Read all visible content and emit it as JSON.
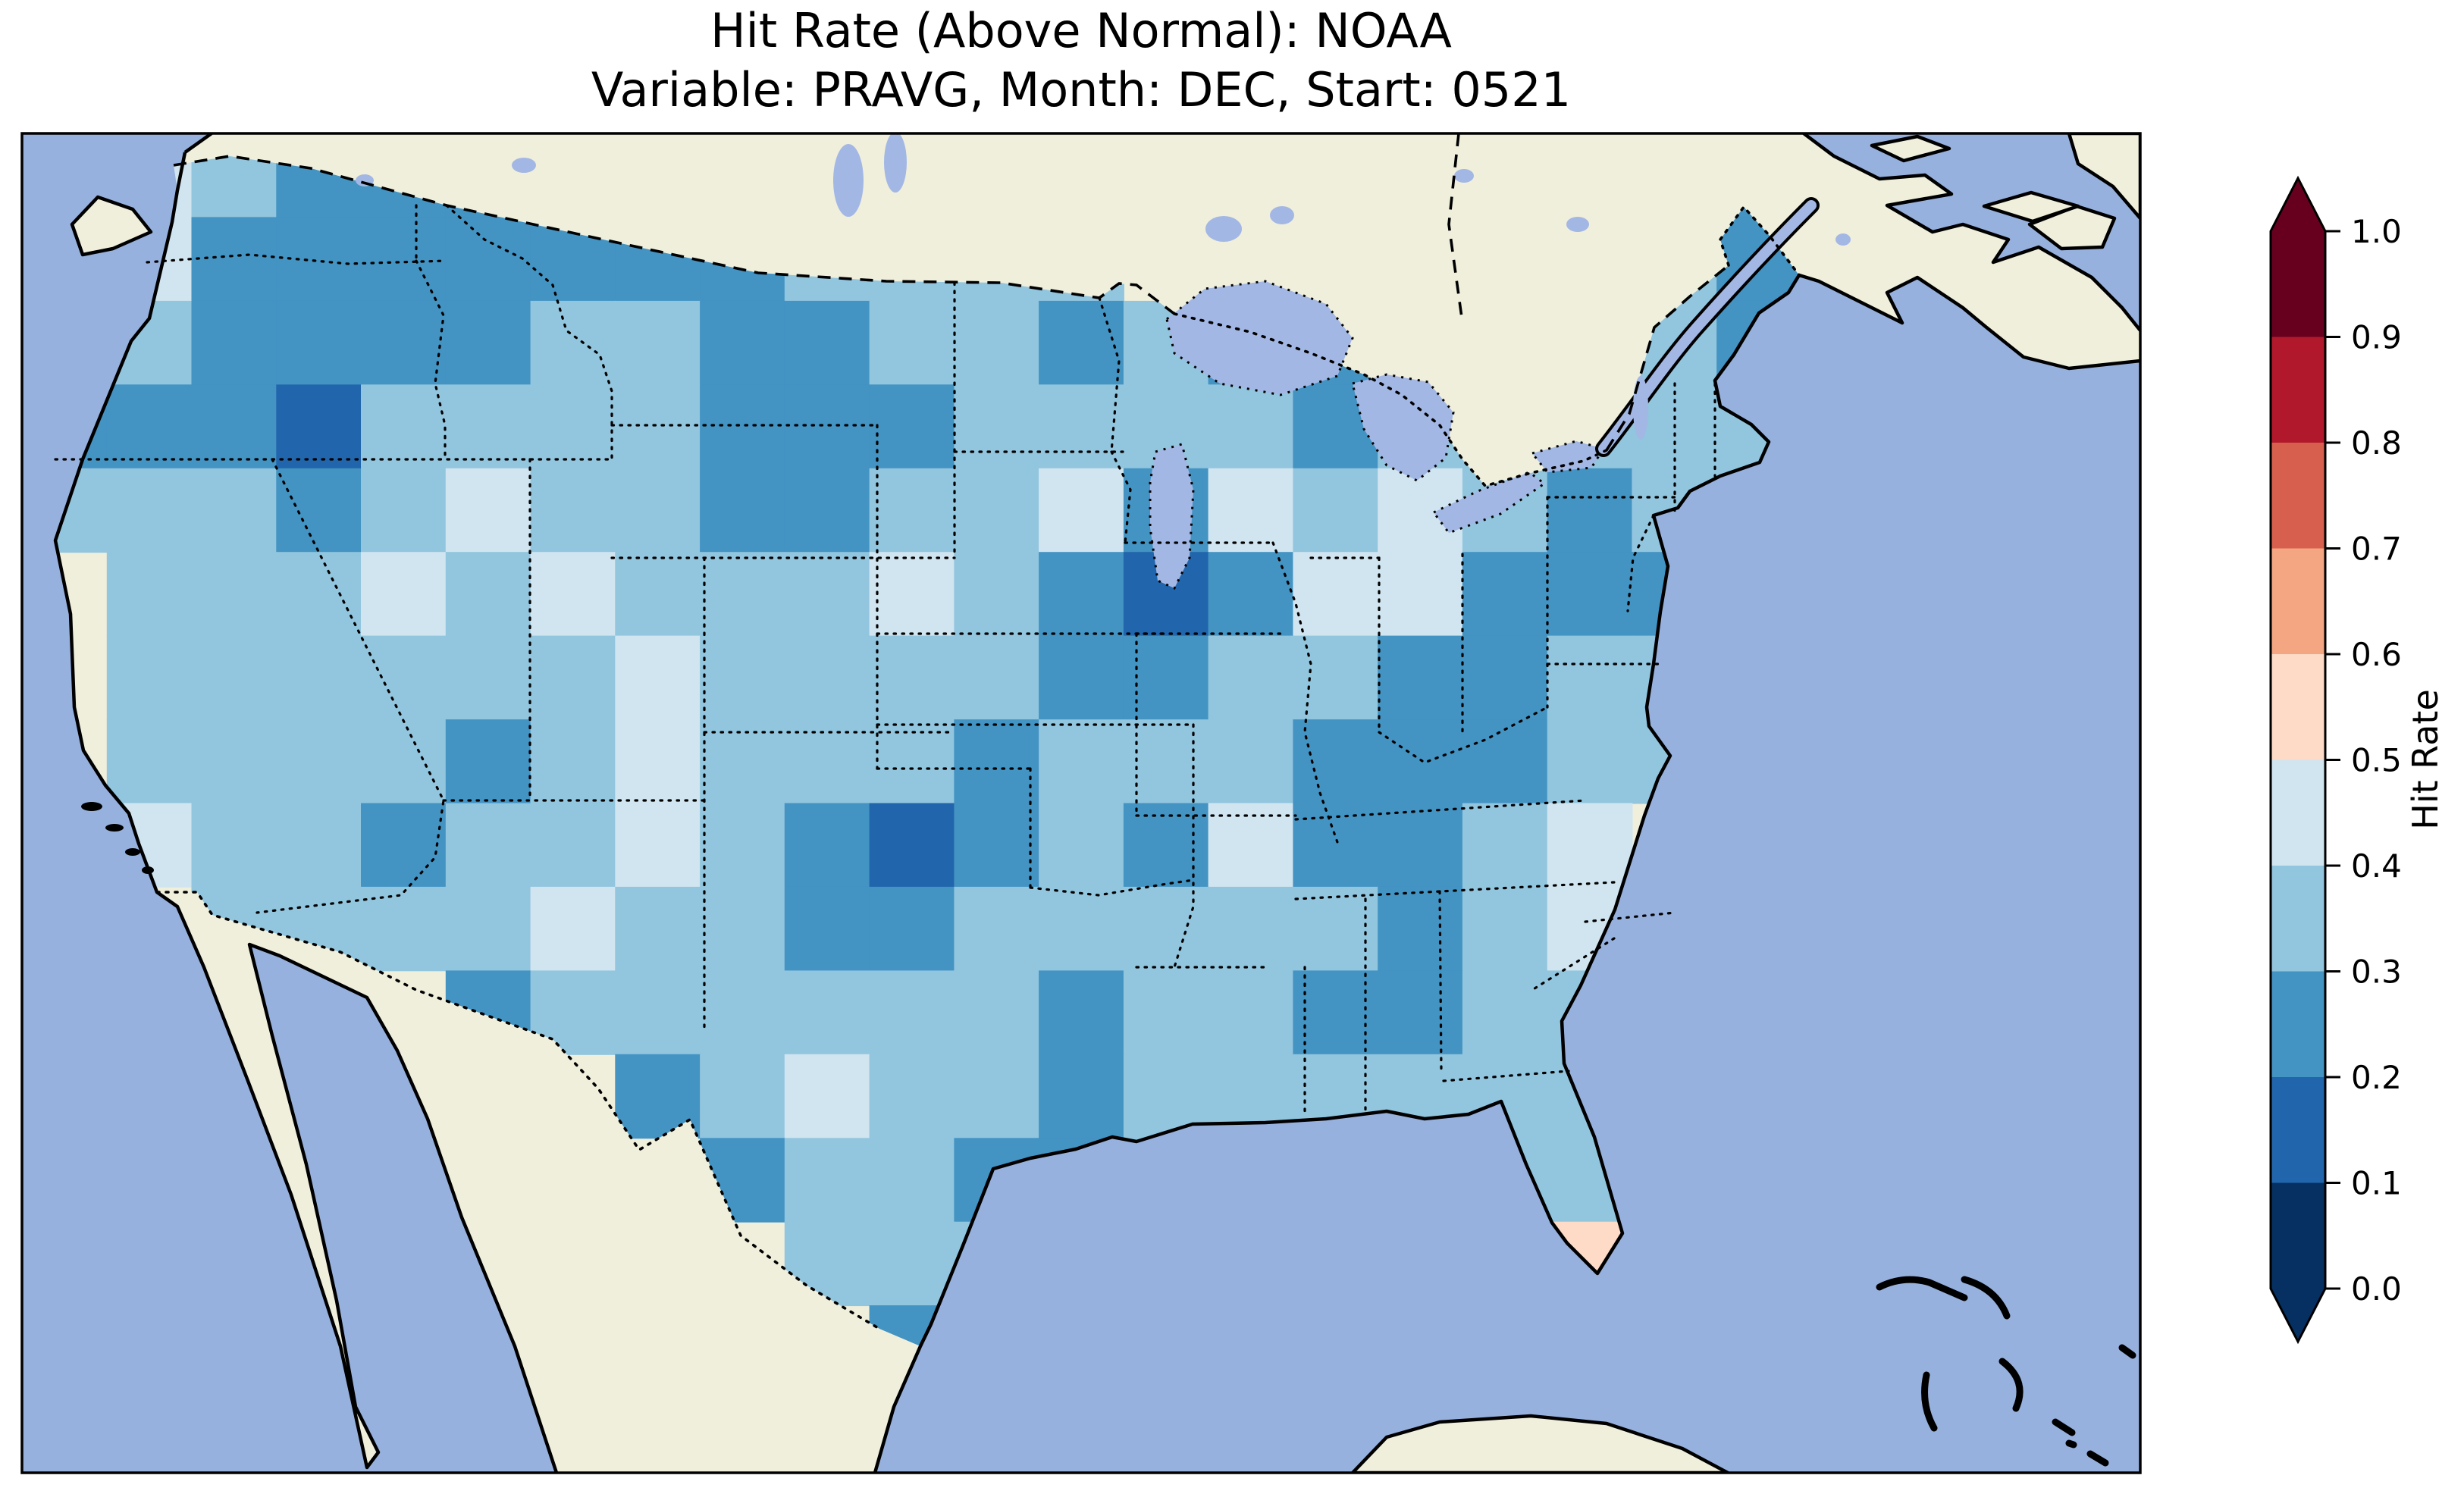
{
  "title": {
    "line1": "Hit Rate (Above Normal): NOAA",
    "line2": "Variable: PRAVG, Month: DEC, Start: 0521"
  },
  "colors": {
    "background": "#ffffff",
    "ocean": "#97b1de",
    "land": "#f0efdc",
    "lake": "#a3b7e4",
    "coastline": "#000000",
    "frame": "#000000"
  },
  "colorbar": {
    "label": "Hit Rate",
    "orientation": "vertical",
    "extend": "both",
    "ticks_top_to_bottom": [
      "1.0",
      "0.9",
      "0.8",
      "0.7",
      "0.6",
      "0.5",
      "0.4",
      "0.3",
      "0.2",
      "0.1",
      "0.0"
    ],
    "segment_colors_top_to_bottom": [
      "#67001f",
      "#b2182b",
      "#d6604d",
      "#f4a582",
      "#fddbc7",
      "#d1e5f0",
      "#92c5de",
      "#4393c3",
      "#2166ac",
      "#053061"
    ],
    "extend_over_color": "#67001f",
    "extend_under_color": "#053061"
  },
  "chart_data": {
    "type": "heatmap",
    "title": "Hit Rate (Above Normal): NOAA",
    "subtitle": "Variable: PRAVG, Month: DEC, Start: 0521",
    "colorbar_label": "Hit Rate",
    "value_range": [
      0.0,
      1.0
    ],
    "bin_edges": [
      0.0,
      0.1,
      0.2,
      0.3,
      0.4,
      0.5,
      0.6,
      0.7,
      0.8,
      0.9,
      1.0
    ],
    "bin_colors": [
      "#053061",
      "#2166ac",
      "#4393c3",
      "#92c5de",
      "#d1e5f0",
      "#fddbc7",
      "#f4a582",
      "#d6604d",
      "#b2182b",
      "#67001f"
    ],
    "legend_position": "right",
    "region": "Continental United States (gridded hit-rate field over CONUS; ocean and non-US land unshaded)",
    "grid": {
      "description": "Coarse estimate of the gridded hit-rate values (bin centers), row 0 = north, col 0 = west; null = outside CONUS data mask",
      "ncols": 25,
      "nrows": 16,
      "values": [
        [
          null,
          0.45,
          0.35,
          0.25,
          0.25,
          0.25,
          null,
          null,
          null,
          null,
          null,
          null,
          null,
          null,
          null,
          null,
          null,
          null,
          null,
          null,
          0.25,
          0.25,
          null,
          null,
          null
        ],
        [
          0.35,
          0.45,
          0.25,
          0.25,
          0.25,
          0.25,
          0.25,
          0.25,
          0.25,
          0.35,
          0.35,
          0.35,
          0.35,
          null,
          null,
          null,
          null,
          null,
          null,
          0.35,
          0.25,
          0.25,
          null,
          null,
          null
        ],
        [
          0.35,
          0.35,
          0.25,
          0.25,
          0.25,
          0.25,
          0.35,
          0.35,
          0.25,
          0.25,
          0.35,
          0.35,
          0.25,
          0.35,
          0.25,
          0.25,
          null,
          null,
          null,
          0.35,
          0.25,
          null,
          null,
          null,
          null
        ],
        [
          0.25,
          0.25,
          0.25,
          0.15,
          0.35,
          0.35,
          0.35,
          0.35,
          0.25,
          0.25,
          0.25,
          0.35,
          0.35,
          0.35,
          0.35,
          0.25,
          0.35,
          0.35,
          0.35,
          0.35,
          0.35,
          null,
          null,
          null,
          null
        ],
        [
          0.35,
          0.35,
          0.35,
          0.25,
          0.35,
          0.45,
          0.35,
          0.35,
          0.25,
          0.25,
          0.35,
          0.35,
          0.45,
          0.25,
          0.45,
          0.35,
          0.45,
          0.35,
          0.25,
          0.35,
          0.35,
          null,
          null,
          null,
          null
        ],
        [
          null,
          0.35,
          0.35,
          0.35,
          0.45,
          0.35,
          0.45,
          0.35,
          0.35,
          0.35,
          0.45,
          0.35,
          0.25,
          0.15,
          0.25,
          0.45,
          0.45,
          0.25,
          0.25,
          0.25,
          null,
          null,
          null,
          null,
          null
        ],
        [
          null,
          0.35,
          0.35,
          0.35,
          0.35,
          0.35,
          0.35,
          0.45,
          0.35,
          0.35,
          0.35,
          0.35,
          0.25,
          0.25,
          0.35,
          0.35,
          0.25,
          0.25,
          0.35,
          0.35,
          null,
          null,
          null,
          null,
          null
        ],
        [
          null,
          0.35,
          0.35,
          0.35,
          0.35,
          0.25,
          0.35,
          0.45,
          0.35,
          0.35,
          0.35,
          0.25,
          0.35,
          0.35,
          0.35,
          0.25,
          0.25,
          0.25,
          0.35,
          0.35,
          null,
          null,
          null,
          null,
          null
        ],
        [
          null,
          0.45,
          0.35,
          0.35,
          0.25,
          0.35,
          0.35,
          0.45,
          0.35,
          0.25,
          0.15,
          0.25,
          0.35,
          0.25,
          0.45,
          0.25,
          0.25,
          0.35,
          0.45,
          null,
          null,
          null,
          null,
          null,
          null
        ],
        [
          null,
          null,
          0.35,
          0.35,
          0.35,
          0.35,
          0.45,
          0.35,
          0.35,
          0.25,
          0.25,
          0.35,
          0.35,
          0.35,
          0.35,
          0.35,
          0.25,
          0.35,
          0.45,
          null,
          null,
          null,
          null,
          null,
          null
        ],
        [
          null,
          null,
          null,
          null,
          null,
          0.25,
          0.35,
          0.35,
          0.35,
          0.35,
          0.35,
          0.35,
          0.25,
          0.35,
          0.35,
          0.25,
          0.25,
          0.35,
          0.35,
          null,
          null,
          null,
          null,
          null,
          null
        ],
        [
          null,
          null,
          null,
          null,
          null,
          null,
          null,
          0.25,
          0.35,
          0.45,
          0.35,
          0.35,
          0.25,
          0.35,
          0.35,
          0.35,
          0.35,
          0.35,
          0.35,
          null,
          null,
          null,
          null,
          null,
          null
        ],
        [
          null,
          null,
          null,
          null,
          null,
          null,
          null,
          null,
          0.25,
          0.35,
          0.35,
          0.25,
          0.25,
          0.35,
          0.35,
          null,
          null,
          0.35,
          0.35,
          null,
          null,
          null,
          null,
          null,
          null
        ],
        [
          null,
          null,
          null,
          null,
          null,
          null,
          null,
          null,
          null,
          0.35,
          0.35,
          0.35,
          0.25,
          null,
          null,
          null,
          null,
          0.35,
          0.55,
          null,
          null,
          null,
          null,
          null,
          null
        ],
        [
          null,
          null,
          null,
          null,
          null,
          null,
          null,
          null,
          null,
          null,
          0.25,
          0.35,
          null,
          null,
          null,
          null,
          null,
          null,
          0.35,
          null,
          null,
          null,
          null,
          null,
          null
        ],
        [
          null,
          null,
          null,
          null,
          null,
          null,
          null,
          null,
          null,
          null,
          null,
          null,
          null,
          null,
          null,
          null,
          null,
          null,
          null,
          null,
          null,
          null,
          null,
          null,
          null
        ]
      ]
    }
  }
}
